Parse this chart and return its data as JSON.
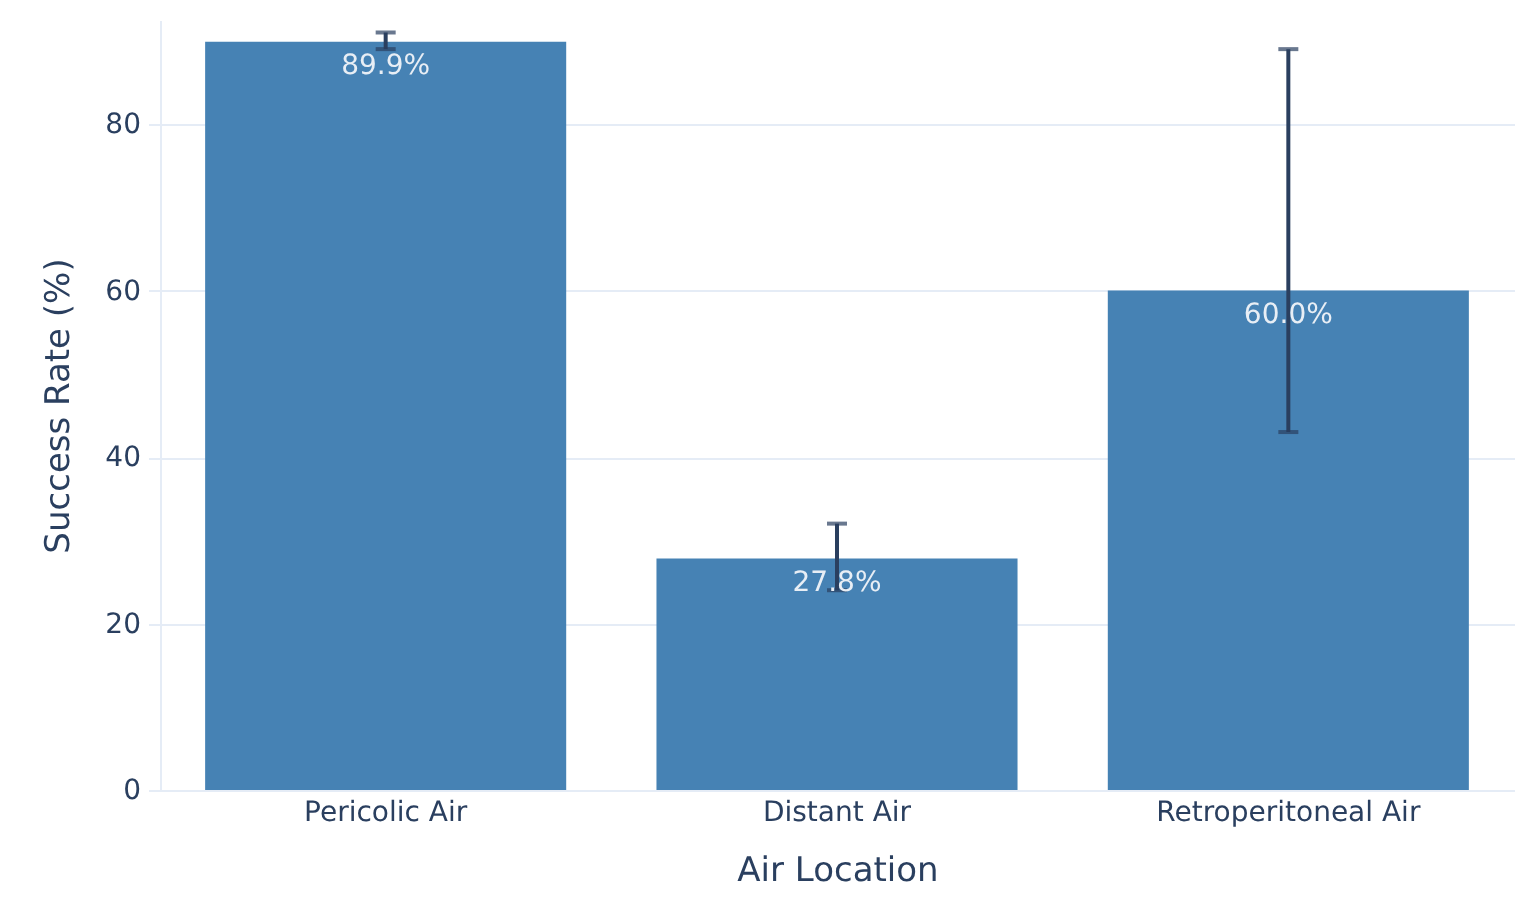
{
  "chart_data": {
    "type": "bar",
    "xlabel": "Air Location",
    "ylabel": "Success Rate (%)",
    "categories": [
      "Pericolic Air",
      "Distant Air",
      "Retroperitoneal Air"
    ],
    "values": [
      89.9,
      27.8,
      60.0
    ],
    "value_labels": [
      "89.9%",
      "27.8%",
      "60.0%"
    ],
    "errors": [
      [
        89,
        91
      ],
      [
        24,
        32
      ],
      [
        43,
        89
      ]
    ],
    "color": "#4682b4",
    "ylim": [
      0,
      92.5
    ],
    "yticks": [
      0,
      20,
      40,
      60,
      80
    ],
    "grid": "y"
  }
}
